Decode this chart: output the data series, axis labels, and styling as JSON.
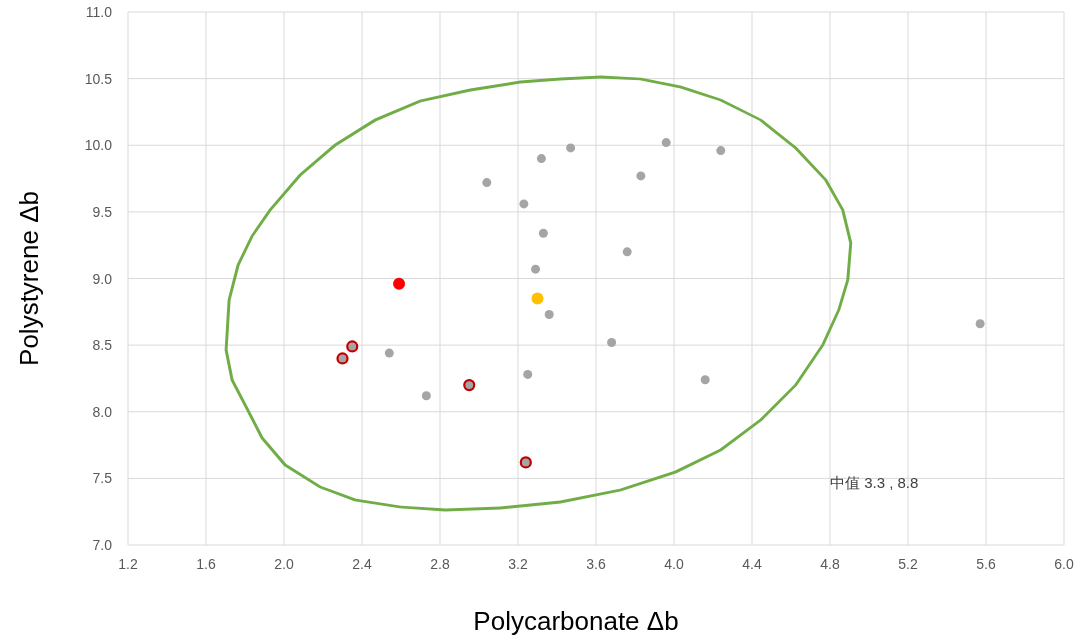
{
  "chart_data": {
    "type": "scatter",
    "xlabel": "Polycarbonate Δb",
    "ylabel": "Polystyrene Δb",
    "xlim": [
      1.2,
      6.0
    ],
    "xticks": [
      1.2,
      1.6,
      {
        "value": 2,
        "label": "2.0"
      },
      2.4,
      2.8,
      3.2,
      3.6,
      {
        "value": 4,
        "label": "4.0"
      },
      4.4,
      4.8,
      5.2,
      5.6,
      {
        "value": 6,
        "label": "6.0"
      }
    ],
    "ylim": [
      7,
      11
    ],
    "yticks": [
      {
        "value": 7,
        "label": "7.0"
      },
      7.5,
      {
        "value": 8,
        "label": "8.0"
      },
      8.5,
      {
        "value": 9,
        "label": "9.0"
      },
      9.5,
      {
        "value": 10,
        "label": "10.0"
      },
      10.5,
      {
        "value": 11,
        "label": "11.0"
      }
    ],
    "grid": true,
    "marker": "circle",
    "series": [
      {
        "color": "#a5a5a5",
        "x": [
          3.04,
          3.23,
          3.32,
          3.47,
          3.83,
          3.96,
          4.24,
          3.33,
          3.76,
          3.29,
          3.36,
          3.68,
          3.25,
          4.16,
          2.54,
          2.73,
          5.57
        ],
        "values": [
          9.72,
          9.56,
          9.9,
          9.98,
          9.77,
          10.02,
          9.96,
          9.34,
          9.2,
          9.07,
          8.73,
          8.52,
          8.28,
          8.24,
          8.44,
          8.12,
          8.66
        ]
      },
      {
        "color": "#c00000",
        "x": [
          2.3,
          2.35,
          2.95,
          3.24
        ],
        "values": [
          8.4,
          8.49,
          8.2,
          7.62
        ]
      },
      {
        "color": "#ff0000",
        "x": [
          2.59
        ],
        "values": [
          8.96
        ]
      },
      {
        "color": "#ffc000",
        "x": [
          3.3
        ],
        "values": [
          8.85
        ]
      }
    ],
    "annotations": [
      "中值 3.3 , 8.8"
    ]
  }
}
